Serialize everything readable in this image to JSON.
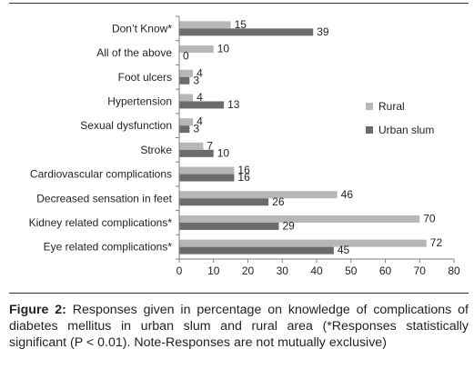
{
  "chart_data": {
    "type": "bar",
    "orientation": "horizontal",
    "categories": [
      "Don’t Know*",
      "All of the above",
      "Foot ulcers",
      "Hypertension",
      "Sexual dysfunction",
      "Stroke",
      "Cardiovascular complications",
      "Decreased sensation in feet",
      "Kidney related complications*",
      "Eye related  complications*"
    ],
    "series": [
      {
        "name": "Rural",
        "color": "#b7b7b7",
        "values": [
          15,
          10,
          4,
          4,
          4,
          7,
          16,
          46,
          70,
          72
        ]
      },
      {
        "name": "Urban slum",
        "color": "#6b6b6b",
        "values": [
          39,
          0,
          3,
          13,
          3,
          10,
          16,
          26,
          29,
          45
        ]
      }
    ],
    "xlim": [
      0,
      80
    ],
    "xticks": [
      "0",
      "10",
      "20",
      "30",
      "40",
      "50",
      "60",
      "70",
      "80"
    ],
    "legend_position": "right",
    "data_labels": true,
    "grid": false
  },
  "caption": {
    "label": "Figure 2:",
    "text": " Responses given in percentage on knowledge of complications of diabetes mellitus in urban slum and rural area (*Responses statistically significant (P < 0.01). Note-Responses are not mutually exclusive)"
  }
}
